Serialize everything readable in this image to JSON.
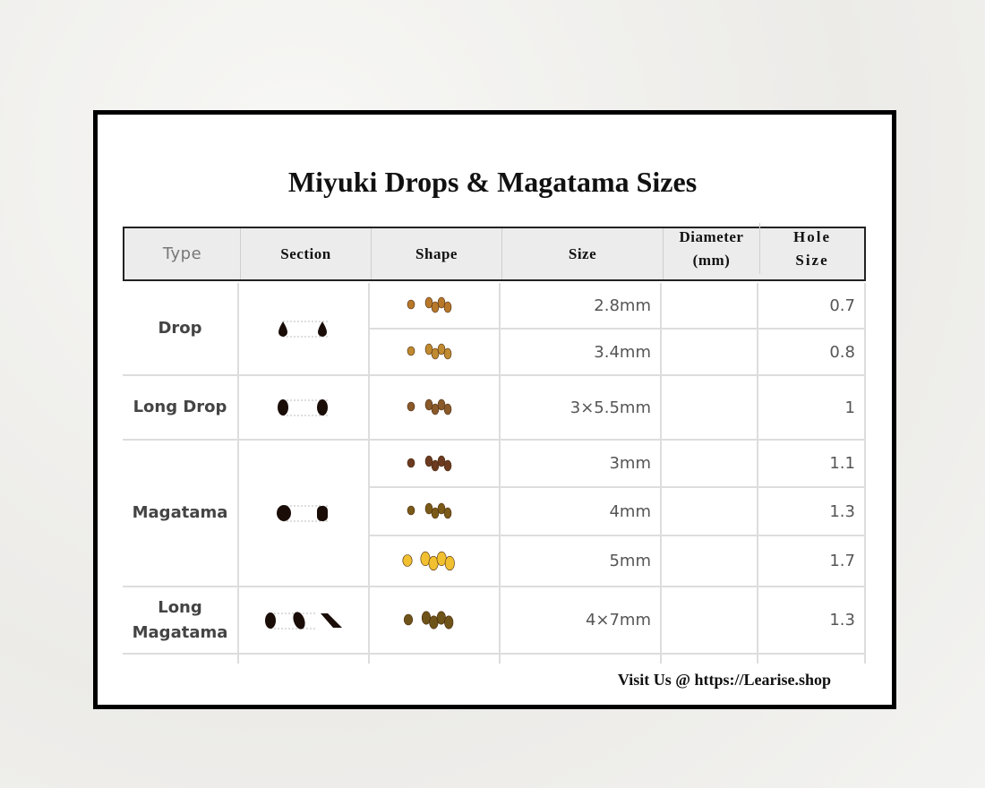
{
  "title": "Miyuki Drops & Magatama Sizes",
  "headers": {
    "type": "Type",
    "section": "Section",
    "shape": "Shape",
    "size": "Size",
    "diameter": "Diameter (mm)",
    "hole": "Hole Size"
  },
  "rows": [
    {
      "type": "Drop",
      "sizes": [
        {
          "size": "2.8mm",
          "diameter": "",
          "hole": "0.7",
          "color": "#b8782a"
        },
        {
          "size": "3.4mm",
          "diameter": "",
          "hole": "0.8",
          "color": "#c08a30"
        }
      ]
    },
    {
      "type": "Long Drop",
      "sizes": [
        {
          "size": "3×5.5mm",
          "diameter": "",
          "hole": "1",
          "color": "#8a5a2a"
        }
      ]
    },
    {
      "type": "Magatama",
      "sizes": [
        {
          "size": "3mm",
          "diameter": "",
          "hole": "1.1",
          "color": "#6b3a20"
        },
        {
          "size": "4mm",
          "diameter": "",
          "hole": "1.3",
          "color": "#7a5a18"
        },
        {
          "size": "5mm",
          "diameter": "",
          "hole": "1.7",
          "color": "#f0c030"
        }
      ]
    },
    {
      "type": "Long Magatama",
      "sizes": [
        {
          "size": "4×7mm",
          "diameter": "",
          "hole": "1.3",
          "color": "#6e5418"
        }
      ]
    }
  ],
  "footer": "Visit Us @ https://Learise.shop"
}
